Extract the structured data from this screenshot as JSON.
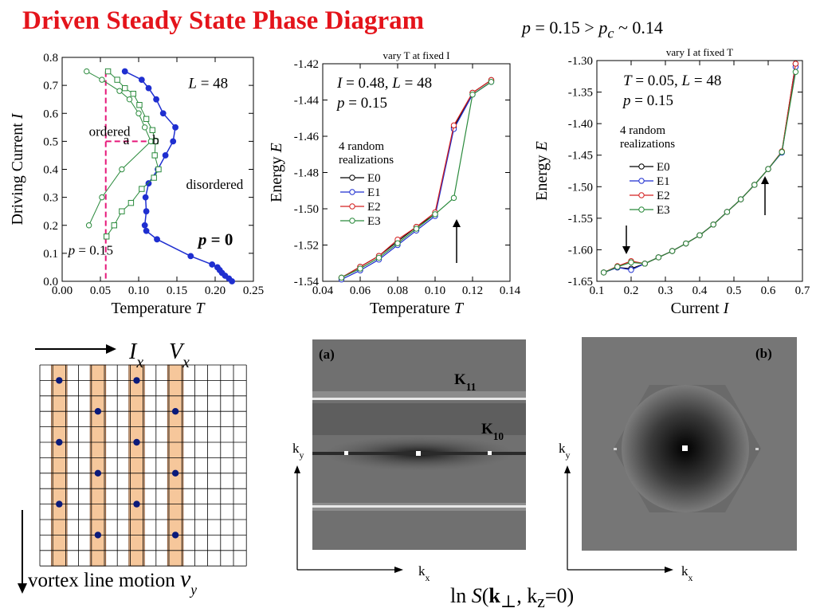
{
  "header": {
    "title": "Driven Steady State Phase Diagram",
    "subtitle_p": "p",
    "subtitle_value": " = 0.15 > ",
    "subtitle_pc": "p",
    "subtitle_c": "c",
    "subtitle_tail": " ~ 0.14"
  },
  "colors": {
    "title": "#e4141b",
    "blue": "#1f2fd0",
    "green": "#2a8a3c",
    "pink": "#e6187a",
    "red": "#d42020",
    "black": "#000000",
    "highlight": "#f6c79b"
  },
  "chart_data": [
    {
      "type": "line",
      "xlabel": "Temperature",
      "xlabel_var": "T",
      "ylabel": "Driving Current",
      "ylabel_var": "I",
      "xlim": [
        0.0,
        0.25
      ],
      "ylim": [
        0.0,
        0.8
      ],
      "xticks": [
        "0.00",
        "0.05",
        "0.10",
        "0.15",
        "0.20",
        "0.25"
      ],
      "yticks": [
        "0.0",
        "0.1",
        "0.2",
        "0.3",
        "0.4",
        "0.5",
        "0.6",
        "0.7",
        "0.8"
      ],
      "annotations": {
        "L": "L = 48",
        "ordered": "ordered",
        "disordered": "disordered",
        "a": "a",
        "b": "b",
        "p0": "p = 0",
        "p015": "p = 0.15"
      },
      "series": [
        {
          "name": "p = 0",
          "color": "#1f2fd0",
          "marker": "filled-circle",
          "x": [
            0.082,
            0.104,
            0.113,
            0.123,
            0.132,
            0.148,
            0.145,
            0.135,
            0.125,
            0.113,
            0.109,
            0.11,
            0.108,
            0.11,
            0.124,
            0.168,
            0.196,
            0.203,
            0.206,
            0.209,
            0.213,
            0.218,
            0.222
          ],
          "y": [
            0.75,
            0.72,
            0.69,
            0.65,
            0.6,
            0.55,
            0.5,
            0.45,
            0.4,
            0.35,
            0.3,
            0.25,
            0.2,
            0.18,
            0.15,
            0.09,
            0.06,
            0.05,
            0.04,
            0.03,
            0.02,
            0.01,
            0.0
          ]
        },
        {
          "name": "p = 0.15 (a)",
          "color": "#2a8a3c",
          "marker": "open-circle",
          "x": [
            0.032,
            0.052,
            0.075,
            0.088,
            0.1,
            0.108,
            0.116,
            0.078,
            0.052,
            0.035
          ],
          "y": [
            0.75,
            0.72,
            0.68,
            0.65,
            0.6,
            0.55,
            0.5,
            0.4,
            0.3,
            0.2
          ]
        },
        {
          "name": "p = 0.15 (b)",
          "color": "#2a8a3c",
          "marker": "open-square",
          "x": [
            0.06,
            0.072,
            0.082,
            0.093,
            0.101,
            0.11,
            0.118,
            0.122,
            0.121,
            0.126,
            0.12,
            0.104,
            0.09,
            0.078,
            0.068,
            0.058
          ],
          "y": [
            0.75,
            0.72,
            0.69,
            0.67,
            0.63,
            0.58,
            0.54,
            0.5,
            0.45,
            0.4,
            0.37,
            0.33,
            0.28,
            0.25,
            0.2,
            0.16
          ]
        }
      ],
      "guides": {
        "vertical_T": 0.057,
        "horizontal_I": 0.5,
        "horizontal_to_T": 0.115
      }
    },
    {
      "type": "line",
      "title": "vary T at fixed I",
      "xlabel": "Temperature",
      "xlabel_var": "T",
      "ylabel": "Energy",
      "ylabel_var": "E",
      "xlim": [
        0.04,
        0.14
      ],
      "ylim": [
        -1.54,
        -1.42
      ],
      "xticks": [
        "0.04",
        "0.06",
        "0.08",
        "0.10",
        "0.12",
        "0.14"
      ],
      "yticks": [
        "-1.42",
        "-1.44",
        "-1.46",
        "-1.48",
        "-1.50",
        "-1.52",
        "-1.54"
      ],
      "annotations": {
        "params": "I = 0.48, L = 48",
        "p": "p = 0.15",
        "realizations_1": "4 random",
        "realizations_2": "realizations"
      },
      "x": [
        0.05,
        0.06,
        0.07,
        0.08,
        0.09,
        0.1,
        0.11,
        0.12,
        0.13
      ],
      "series": [
        {
          "name": "E0",
          "color": "#000000",
          "values": [
            -1.538,
            -1.532,
            -1.526,
            -1.518,
            -1.51,
            -1.503,
            -1.455,
            -1.436,
            -1.429
          ]
        },
        {
          "name": "E1",
          "color": "#1f2fd0",
          "values": [
            -1.539,
            -1.534,
            -1.528,
            -1.52,
            -1.512,
            -1.504,
            -1.456,
            -1.437,
            -1.43
          ]
        },
        {
          "name": "E2",
          "color": "#d42020",
          "values": [
            -1.538,
            -1.532,
            -1.526,
            -1.517,
            -1.51,
            -1.502,
            -1.454,
            -1.436,
            -1.429
          ]
        },
        {
          "name": "E3",
          "color": "#2a8a3c",
          "values": [
            -1.538,
            -1.533,
            -1.527,
            -1.519,
            -1.511,
            -1.503,
            -1.494,
            -1.437,
            -1.43
          ]
        }
      ]
    },
    {
      "type": "line",
      "title": "vary I at fixed T",
      "xlabel": "Current",
      "xlabel_var": "I",
      "ylabel": "Energy",
      "ylabel_var": "E",
      "xlim": [
        0.1,
        0.7
      ],
      "ylim": [
        -1.65,
        -1.3
      ],
      "xticks": [
        "0.1",
        "0.2",
        "0.3",
        "0.4",
        "0.5",
        "0.6",
        "0.7"
      ],
      "yticks": [
        "-1.30",
        "-1.35",
        "-1.40",
        "-1.45",
        "-1.50",
        "-1.55",
        "-1.60",
        "-1.65"
      ],
      "annotations": {
        "params": "T = 0.05, L = 48",
        "p": "p = 0.15",
        "realizations_1": "4 random",
        "realizations_2": "realizations"
      },
      "x": [
        0.12,
        0.16,
        0.2,
        0.24,
        0.28,
        0.32,
        0.36,
        0.4,
        0.44,
        0.48,
        0.52,
        0.56,
        0.6,
        0.64,
        0.68
      ],
      "series": [
        {
          "name": "E0",
          "color": "#000000",
          "values": [
            -1.636,
            -1.628,
            -1.63,
            -1.622,
            -1.612,
            -1.602,
            -1.59,
            -1.577,
            -1.56,
            -1.54,
            -1.52,
            -1.497,
            -1.472,
            -1.445,
            -1.305
          ]
        },
        {
          "name": "E1",
          "color": "#1f2fd0",
          "values": [
            -1.636,
            -1.628,
            -1.632,
            -1.622,
            -1.612,
            -1.602,
            -1.59,
            -1.577,
            -1.56,
            -1.54,
            -1.52,
            -1.497,
            -1.472,
            -1.446,
            -1.31
          ]
        },
        {
          "name": "E2",
          "color": "#d42020",
          "values": [
            -1.636,
            -1.626,
            -1.618,
            -1.622,
            -1.612,
            -1.602,
            -1.59,
            -1.577,
            -1.56,
            -1.54,
            -1.52,
            -1.497,
            -1.472,
            -1.444,
            -1.305
          ]
        },
        {
          "name": "E3",
          "color": "#2a8a3c",
          "values": [
            -1.636,
            -1.627,
            -1.62,
            -1.622,
            -1.612,
            -1.602,
            -1.59,
            -1.577,
            -1.56,
            -1.54,
            -1.52,
            -1.497,
            -1.472,
            -1.445,
            -1.318
          ]
        }
      ]
    }
  ],
  "lattice": {
    "Ix": "I",
    "Ix_sub": "x",
    "Vx": "V",
    "Vx_sub": "x",
    "caption": "vortex line motion ",
    "caption_var": "v",
    "caption_sub": "y",
    "columns": 16,
    "rows": 13,
    "highlight_columns": [
      1,
      4,
      7,
      10
    ]
  },
  "fourier": {
    "panel_a": "(a)",
    "panel_b": "(b)",
    "K11": "K",
    "K11_sub": "11",
    "K10": "K",
    "K10_sub": "10",
    "ky": "k",
    "ky_sub": "y",
    "kx": "k",
    "kx_sub": "x",
    "caption_ln": "ln ",
    "caption_S": "S",
    "caption_args_open": "(",
    "caption_k": "k",
    "caption_perp": "⊥",
    "caption_mid": ", k",
    "caption_z": "z",
    "caption_end": "=0)"
  }
}
